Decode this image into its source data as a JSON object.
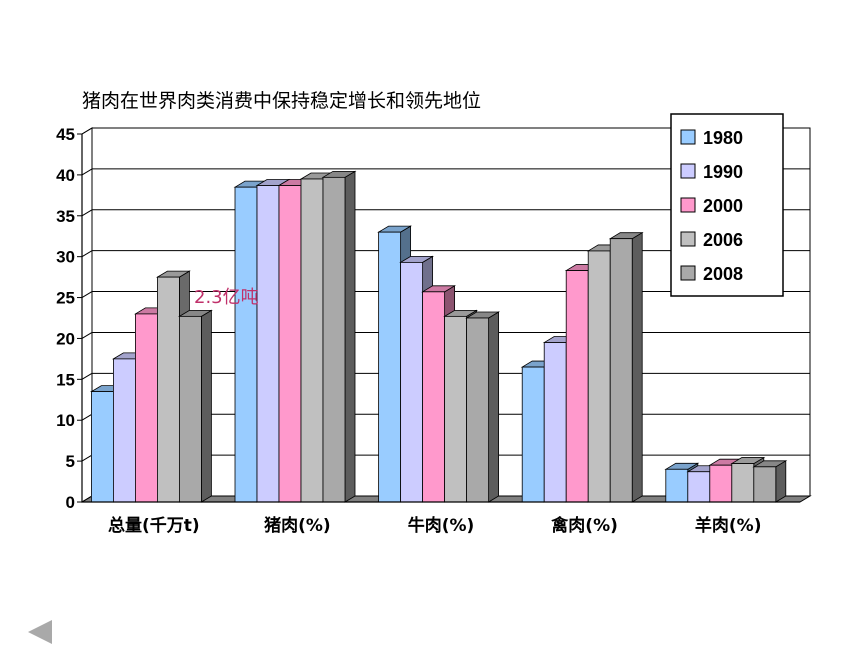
{
  "chart_data": {
    "type": "bar",
    "title": "猪肉在世界肉类消费中保持稳定增长和领先地位",
    "categories": [
      "总量(千万t)",
      "猪肉(%)",
      "牛肉(%)",
      "禽肉(%)",
      "羊肉(%)"
    ],
    "series": [
      {
        "name": "1980",
        "values": [
          13.5,
          38.5,
          33,
          16.5,
          4
        ],
        "color": "#99ccff"
      },
      {
        "name": "1990",
        "values": [
          17.5,
          38.7,
          29.3,
          19.5,
          3.7
        ],
        "color": "#ccccff"
      },
      {
        "name": "2000",
        "values": [
          23,
          38.7,
          25.7,
          28.3,
          4.5
        ],
        "color": "#ff99cc"
      },
      {
        "name": "2006",
        "values": [
          27.5,
          39.5,
          22.7,
          30.7,
          4.7
        ],
        "color": "#c0c0c0"
      },
      {
        "name": "2008",
        "values": [
          22.7,
          39.7,
          22.5,
          32.2,
          4.3
        ],
        "color": "#a9a9a9"
      }
    ],
    "ylim": [
      0,
      45
    ],
    "yticks": [
      0,
      5,
      10,
      15,
      20,
      25,
      30,
      35,
      40,
      45
    ],
    "grid": true,
    "legend": "top-right",
    "annotation": "2.3亿吨"
  }
}
